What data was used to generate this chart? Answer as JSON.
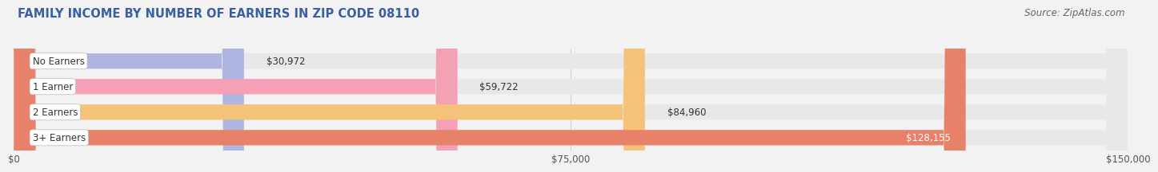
{
  "title": "FAMILY INCOME BY NUMBER OF EARNERS IN ZIP CODE 08110",
  "source": "Source: ZipAtlas.com",
  "categories": [
    "No Earners",
    "1 Earner",
    "2 Earners",
    "3+ Earners"
  ],
  "values": [
    30972,
    59722,
    84960,
    128155
  ],
  "bar_colors": [
    "#adb5e0",
    "#f4a0b5",
    "#f5c27a",
    "#e8816a"
  ],
  "bar_bg_color": "#e8e8e8",
  "label_text_color": "#333333",
  "value_label_colors": [
    "#333333",
    "#333333",
    "#333333",
    "#ffffff"
  ],
  "value_labels": [
    "$30,972",
    "$59,722",
    "$84,960",
    "$128,155"
  ],
  "xlim_max": 150000,
  "xticks": [
    0,
    75000,
    150000
  ],
  "xticklabels": [
    "$0",
    "$75,000",
    "$150,000"
  ],
  "bg_color": "#f2f2f2",
  "title_color": "#3a5fa0",
  "source_color": "#666666",
  "grid_color": "#cccccc",
  "title_fontsize": 10.5,
  "source_fontsize": 8.5,
  "label_fontsize": 8.5,
  "value_fontsize": 8.5,
  "tick_fontsize": 8.5
}
